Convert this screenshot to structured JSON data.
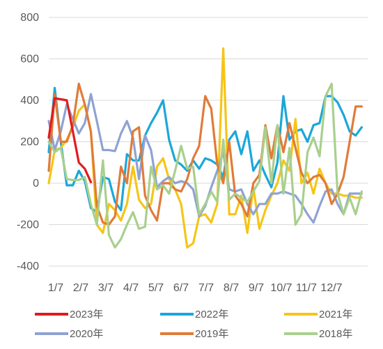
{
  "chart_data": {
    "type": "line",
    "title": "",
    "xlabel": "",
    "ylabel": "",
    "ylim": [
      -400,
      800
    ],
    "yticks": [
      -400,
      -200,
      0,
      200,
      400,
      600,
      800
    ],
    "ytick_labels": [
      "-400",
      "-200",
      "0",
      "200",
      "400",
      "600",
      "800"
    ],
    "x_tick_labels": [
      "1/7",
      "2/7",
      "3/7",
      "4/7",
      "5/7",
      "6/7",
      "7/7",
      "8/7",
      "9/7",
      "10/7",
      "11/7",
      "12/7"
    ],
    "x_range": [
      0,
      53
    ],
    "grid": "horizontal",
    "legend_position": "bottom",
    "series": [
      {
        "name": "2023年",
        "color": "#e31a1c",
        "x": [
          0,
          1,
          2,
          3,
          4,
          5,
          6,
          7
        ],
        "values": [
          220,
          410,
          405,
          400,
          250,
          100,
          70,
          5
        ]
      },
      {
        "name": "2022年",
        "color": "#1aa7d9",
        "x": [
          0,
          1,
          2,
          3,
          4,
          5,
          6,
          7,
          8,
          9,
          10,
          11,
          12,
          13,
          14,
          15,
          16,
          17,
          18,
          19,
          20,
          21,
          22,
          23,
          24,
          25,
          26,
          27,
          28,
          29,
          30,
          31,
          32,
          33,
          34,
          35,
          36,
          37,
          38,
          39,
          40,
          41,
          42,
          43,
          44,
          45,
          46,
          47,
          48,
          49,
          50,
          51,
          52
        ],
        "values": [
          150,
          460,
          200,
          -10,
          -10,
          60,
          10,
          -120,
          -140,
          30,
          20,
          -90,
          -130,
          140,
          110,
          110,
          230,
          290,
          340,
          400,
          210,
          110,
          90,
          60,
          110,
          70,
          120,
          110,
          90,
          30,
          210,
          250,
          140,
          250,
          60,
          110,
          40,
          -20,
          100,
          420,
          210,
          250,
          260,
          200,
          280,
          290,
          420,
          420,
          390,
          330,
          250,
          230,
          270
        ]
      },
      {
        "name": "2021年",
        "color": "#f5c518",
        "x": [
          0,
          1,
          2,
          3,
          4,
          5,
          6,
          7,
          8,
          9,
          10,
          11,
          12,
          13,
          14,
          15,
          16,
          17,
          18,
          19,
          20,
          21,
          22,
          23,
          24,
          25,
          26,
          27,
          28,
          29,
          30,
          31,
          32,
          33,
          34,
          35,
          36,
          37,
          38,
          39,
          40,
          41,
          42,
          43,
          44,
          45,
          46,
          47,
          48,
          49,
          50,
          51,
          52
        ],
        "values": [
          0,
          160,
          170,
          210,
          270,
          350,
          380,
          250,
          -200,
          -240,
          -100,
          -130,
          -180,
          -100,
          80,
          -80,
          -120,
          -100,
          80,
          120,
          20,
          -30,
          -100,
          -310,
          -290,
          -160,
          -150,
          -190,
          -100,
          650,
          -150,
          -150,
          -60,
          -240,
          -20,
          -220,
          -130,
          -60,
          0,
          110,
          60,
          310,
          0,
          50,
          -50,
          70,
          0,
          -50,
          -50,
          -60,
          -60,
          -70,
          -70
        ]
      },
      {
        "name": "2020年",
        "color": "#8fa2d4",
        "x": [
          0,
          1,
          2,
          3,
          4,
          5,
          6,
          7,
          8,
          9,
          10,
          11,
          12,
          13,
          14,
          15,
          16,
          17,
          18,
          19,
          20,
          21,
          22,
          23,
          24,
          25,
          26,
          27,
          28,
          29,
          30,
          31,
          32,
          33,
          34,
          35,
          36,
          37,
          38,
          39,
          40,
          41,
          42,
          43,
          44,
          45,
          46,
          47,
          48,
          49,
          50,
          51,
          52
        ],
        "values": [
          300,
          160,
          250,
          380,
          310,
          240,
          290,
          430,
          300,
          160,
          160,
          155,
          240,
          300,
          220,
          20,
          230,
          160,
          -20,
          10,
          30,
          0,
          10,
          0,
          -30,
          -160,
          -110,
          -20,
          60,
          150,
          -30,
          -40,
          -30,
          -100,
          -150,
          -100,
          -100,
          -50,
          -50,
          -40,
          -50,
          -60,
          -100,
          -150,
          -190,
          -110,
          -40,
          -30,
          -100,
          -150,
          -50,
          -50,
          -50
        ]
      },
      {
        "name": "2019年",
        "color": "#e07b39",
        "x": [
          0,
          1,
          2,
          3,
          4,
          5,
          6,
          7,
          8,
          9,
          10,
          11,
          12,
          13,
          14,
          15,
          16,
          17,
          18,
          19,
          20,
          21,
          22,
          23,
          24,
          25,
          26,
          27,
          28,
          29,
          30,
          31,
          32,
          33,
          34,
          35,
          36,
          37,
          38,
          39,
          40,
          41,
          42,
          43,
          44,
          45,
          46,
          47,
          48,
          49,
          50,
          51,
          52
        ],
        "values": [
          60,
          430,
          200,
          200,
          280,
          480,
          380,
          250,
          -110,
          -190,
          -200,
          -160,
          80,
          0,
          250,
          270,
          -60,
          -130,
          -180,
          0,
          0,
          -30,
          -40,
          20,
          120,
          180,
          420,
          360,
          90,
          0,
          200,
          -60,
          -100,
          -160,
          0,
          40,
          280,
          120,
          280,
          150,
          290,
          170,
          50,
          0,
          30,
          40,
          0,
          -100,
          -50,
          30,
          200,
          370,
          370
        ]
      },
      {
        "name": "2018年",
        "color": "#a8d08d",
        "x": [
          0,
          1,
          2,
          3,
          4,
          5,
          6,
          7,
          8,
          9,
          10,
          11,
          12,
          13,
          14,
          15,
          16,
          17,
          18,
          19,
          20,
          21,
          22,
          23,
          24,
          25,
          26,
          27,
          28,
          29,
          30,
          31,
          32,
          33,
          34,
          35,
          36,
          37,
          38,
          39,
          40,
          41,
          42,
          43,
          44,
          45,
          46,
          47,
          48,
          49,
          50,
          51,
          52
        ],
        "values": [
          200,
          150,
          170,
          20,
          15,
          15,
          30,
          -100,
          -200,
          110,
          -250,
          -310,
          -270,
          -200,
          -140,
          -220,
          -210,
          80,
          -30,
          -10,
          -50,
          60,
          180,
          70,
          80,
          -150,
          -100,
          -40,
          -90,
          210,
          -80,
          -50,
          -70,
          -90,
          -40,
          10,
          270,
          0,
          280,
          -50,
          170,
          -200,
          -150,
          150,
          220,
          130,
          420,
          480,
          -50,
          -150,
          -70,
          -150,
          -40
        ]
      }
    ]
  }
}
